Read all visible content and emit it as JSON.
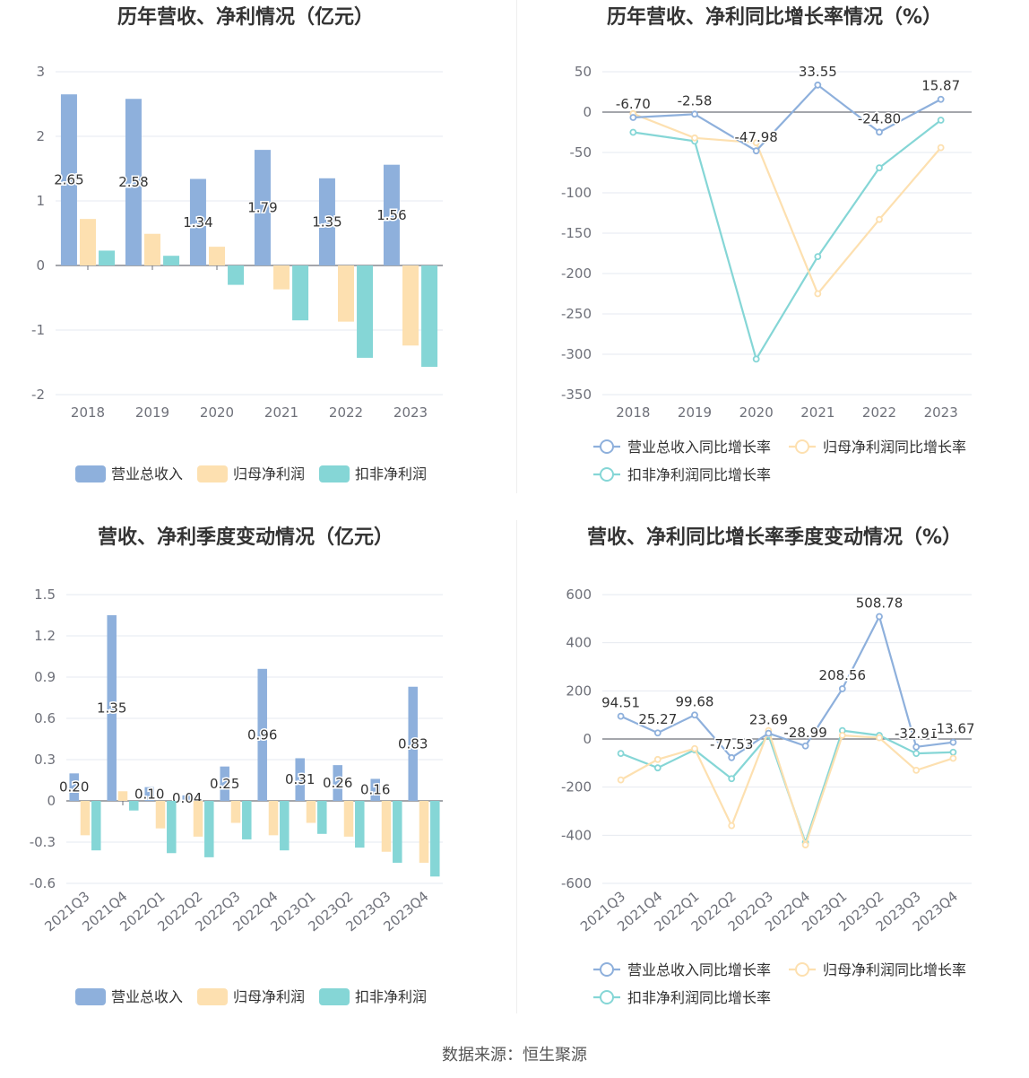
{
  "charts": {
    "annual_amount": {
      "title": "历年营收、净利情况（亿元）",
      "chart_data": {
        "type": "bar",
        "title": "历年营收、净利情况（亿元）",
        "categories": [
          "2018",
          "2019",
          "2020",
          "2021",
          "2022",
          "2023"
        ],
        "series": [
          {
            "name": "营业总收入",
            "values": [
              2.65,
              2.58,
              1.34,
              1.79,
              1.35,
              1.56
            ],
            "color": "#8eb0dc",
            "labels": [
              "2.65",
              "2.58",
              "1.34",
              "1.79",
              "1.35",
              "1.56"
            ]
          },
          {
            "name": "归母净利润",
            "values": [
              0.72,
              0.49,
              0.29,
              -0.37,
              -0.87,
              -1.24
            ],
            "color": "#fde0b0"
          },
          {
            "name": "扣非净利润",
            "values": [
              0.23,
              0.15,
              -0.3,
              -0.85,
              -1.43,
              -1.57
            ],
            "color": "#85d6d6"
          }
        ],
        "ylim": [
          -2,
          3
        ],
        "yticks": [
          "3",
          "2",
          "1",
          "0",
          "-1",
          "-2"
        ],
        "grid": true,
        "legend": "bottom"
      }
    },
    "annual_growth": {
      "title": "历年营收、净利同比增长率情况（%）",
      "chart_data": {
        "type": "line",
        "title": "历年营收、净利同比增长率情况（%）",
        "categories": [
          "2018",
          "2019",
          "2020",
          "2021",
          "2022",
          "2023"
        ],
        "series": [
          {
            "name": "营业总收入同比增长率",
            "values": [
              -6.7,
              -2.58,
              -47.98,
              33.55,
              -24.8,
              15.87
            ],
            "color": "#8eb0dc",
            "labels": [
              "-6.70",
              "-2.58",
              "-47.98",
              "33.55",
              "-24.80",
              "15.87"
            ]
          },
          {
            "name": "归母净利润同比增长率",
            "values": [
              -2,
              -32,
              -38,
              -225,
              -133,
              -44
            ],
            "color": "#fde0b0"
          },
          {
            "name": "扣非净利润同比增长率",
            "values": [
              -25,
              -36,
              -306,
              -179,
              -69,
              -10
            ],
            "color": "#85d6d6"
          }
        ],
        "ylim": [
          -350,
          50
        ],
        "yticks": [
          "50",
          "0",
          "-50",
          "-100",
          "-150",
          "-200",
          "-250",
          "-300",
          "-350"
        ],
        "grid": true,
        "legend": "bottom"
      }
    },
    "quarterly_amount": {
      "title": "营收、净利季度变动情况（亿元）",
      "chart_data": {
        "type": "bar",
        "title": "营收、净利季度变动情况（亿元）",
        "categories": [
          "2021Q3",
          "2021Q4",
          "2022Q1",
          "2022Q2",
          "2022Q3",
          "2022Q4",
          "2023Q1",
          "2023Q2",
          "2023Q3",
          "2023Q4"
        ],
        "series": [
          {
            "name": "营业总收入",
            "values": [
              0.2,
              1.35,
              0.1,
              0.04,
              0.25,
              0.96,
              0.31,
              0.26,
              0.16,
              0.83
            ],
            "color": "#8eb0dc",
            "labels": [
              "0.20",
              "1.35",
              "0.10",
              "0.04",
              "0.25",
              "0.96",
              "0.31",
              "0.26",
              "0.16",
              "0.83"
            ]
          },
          {
            "name": "归母净利润",
            "values": [
              -0.25,
              0.07,
              -0.2,
              -0.26,
              -0.16,
              -0.25,
              -0.16,
              -0.26,
              -0.37,
              -0.45
            ],
            "color": "#fde0b0"
          },
          {
            "name": "扣非净利润",
            "values": [
              -0.36,
              -0.07,
              -0.38,
              -0.41,
              -0.28,
              -0.36,
              -0.24,
              -0.34,
              -0.45,
              -0.55
            ],
            "color": "#85d6d6"
          }
        ],
        "ylim": [
          -0.6,
          1.5
        ],
        "yticks": [
          "1.5",
          "1.2",
          "0.9",
          "0.6",
          "0.3",
          "0",
          "-0.3",
          "-0.6"
        ],
        "grid": true,
        "legend": "bottom"
      }
    },
    "quarterly_growth": {
      "title": "营收、净利同比增长率季度变动情况（%）",
      "chart_data": {
        "type": "line",
        "title": "营收、净利同比增长率季度变动情况（%）",
        "categories": [
          "2021Q3",
          "2021Q4",
          "2022Q1",
          "2022Q2",
          "2022Q3",
          "2022Q4",
          "2023Q1",
          "2023Q2",
          "2023Q3",
          "2023Q4"
        ],
        "series": [
          {
            "name": "营业总收入同比增长率",
            "values": [
              94.51,
              25.27,
              99.68,
              -77.53,
              23.69,
              -28.99,
              208.56,
              508.78,
              -32.91,
              -13.67
            ],
            "color": "#8eb0dc",
            "labels": [
              "94.51",
              "25.27",
              "99.68",
              "-77.53",
              "23.69",
              "-28.99",
              "208.56",
              "508.78",
              "-32.91",
              "-13.67"
            ]
          },
          {
            "name": "归母净利润同比增长率",
            "values": [
              -170,
              -85,
              -40,
              -360,
              35,
              -440,
              15,
              5,
              -130,
              -80
            ],
            "color": "#fde0b0"
          },
          {
            "name": "扣非净利润同比增长率",
            "values": [
              -60,
              -120,
              -45,
              -165,
              15,
              -430,
              35,
              15,
              -60,
              -55
            ],
            "color": "#85d6d6"
          }
        ],
        "ylim": [
          -600,
          600
        ],
        "yticks": [
          "600",
          "400",
          "200",
          "0",
          "-200",
          "-400",
          "-600"
        ],
        "grid": true,
        "legend": "bottom"
      }
    }
  },
  "source_text": "数据来源：恒生聚源"
}
